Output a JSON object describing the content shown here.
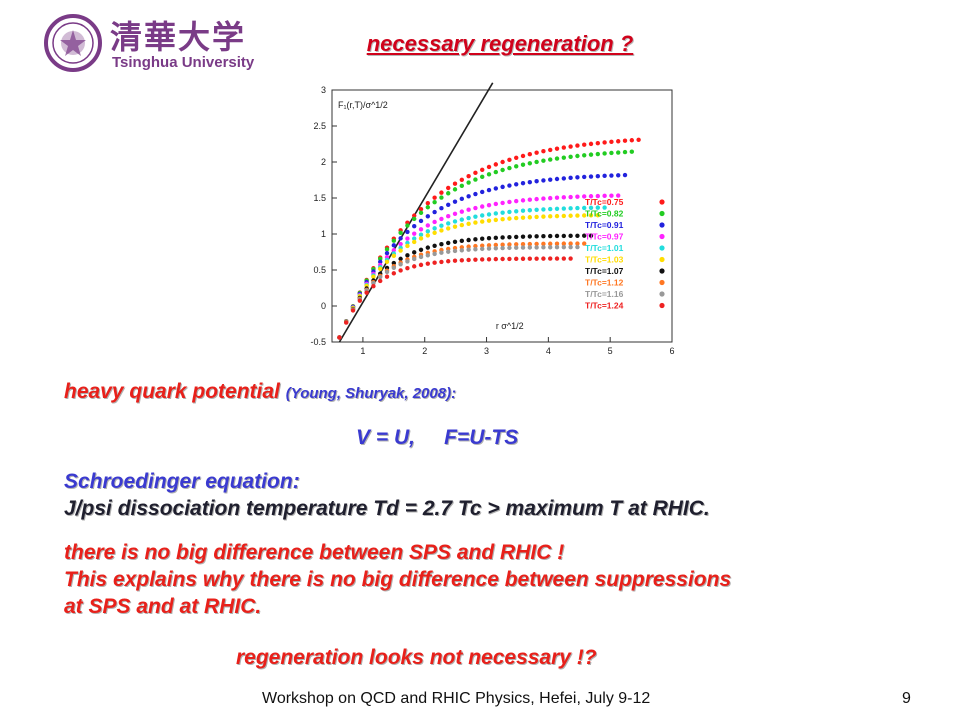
{
  "logo": {
    "name_cn": "清華大学",
    "name_en": "Tsinghua University"
  },
  "title": "necessary regeneration ?",
  "chart_data": {
    "type": "scatter",
    "ylabel": "F₁(r,T)/σ^1/2",
    "xlabel": "r σ^1/2",
    "xlim": [
      0.5,
      6
    ],
    "ylim": [
      -0.5,
      3
    ],
    "xticks": [
      "1",
      "2",
      "3",
      "4",
      "5",
      "6"
    ],
    "yticks": [
      "3",
      "2.5",
      "2",
      "1.5",
      "1",
      "0.5",
      "0",
      "-0.5"
    ],
    "legend_placement": "right",
    "series": [
      {
        "name": "T/Tc=0.75",
        "color": "#ff1a1a",
        "plateau": 2.38
      },
      {
        "name": "T/Tc=0.82",
        "color": "#22cc22",
        "plateau": 2.2
      },
      {
        "name": "T/Tc=0.91",
        "color": "#2222dd",
        "plateau": 1.85
      },
      {
        "name": "T/Tc=0.97",
        "color": "#ff22ff",
        "plateau": 1.55
      },
      {
        "name": "T/Tc=1.01",
        "color": "#22dddd",
        "plateau": 1.38
      },
      {
        "name": "T/Tc=1.03",
        "color": "#ffdd00",
        "plateau": 1.27
      },
      {
        "name": "T/Tc=1.07",
        "color": "#111111",
        "plateau": 0.98
      },
      {
        "name": "T/Tc=1.12",
        "color": "#ff7722",
        "plateau": 0.87
      },
      {
        "name": "T/Tc=1.16",
        "color": "#999999",
        "plateau": 0.82
      },
      {
        "name": "T/Tc=1.24",
        "color": "#ee2222",
        "plateau": 0.66
      }
    ]
  },
  "text": {
    "potential_label": "heavy quark potential",
    "potential_ref": "(Young, Shuryak, 2008):",
    "equation": "V = U,     F=U-TS",
    "schroedinger": "Schroedinger equation:",
    "dissociation": "J/psi dissociation temperature Td = 2.7 Tc > maximum T at RHIC.",
    "line1": "there is no big difference between SPS and RHIC !",
    "line2": "This explains why there is no big difference between suppressions",
    "line3": "at SPS and at RHIC.",
    "conclusion": "regeneration looks not necessary !?"
  },
  "footer": {
    "workshop": "Workshop on QCD and RHIC Physics,  Hefei,  July 9-12",
    "page": "9"
  }
}
